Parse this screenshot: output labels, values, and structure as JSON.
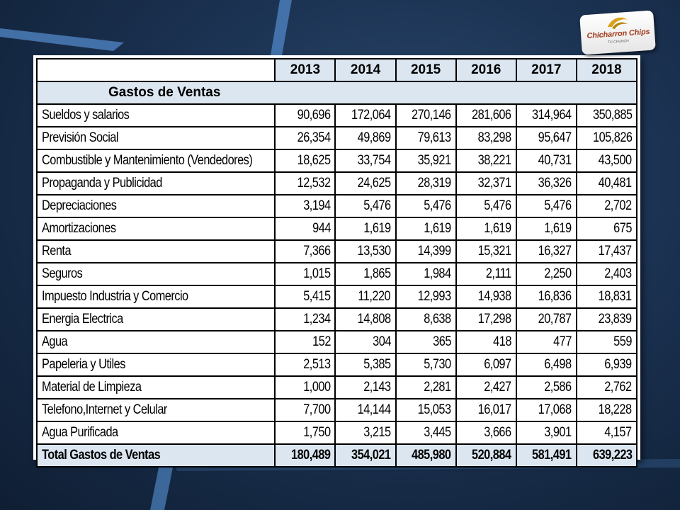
{
  "brand": {
    "name": "Chicharron Chips",
    "tagline": "TU CHUNCH"
  },
  "table": {
    "years": [
      "2013",
      "2014",
      "2015",
      "2016",
      "2017",
      "2018"
    ],
    "section_title": "Gastos de Ventas",
    "rows": [
      {
        "label": "Sueldos y salarios",
        "values": [
          "90,696",
          "172,064",
          "270,146",
          "281,606",
          "314,964",
          "350,885"
        ]
      },
      {
        "label": "Previsión Social",
        "values": [
          "26,354",
          "49,869",
          "79,613",
          "83,298",
          "95,647",
          "105,826"
        ]
      },
      {
        "label": "Combustible y Mantenimiento (Vendedores)",
        "values": [
          "18,625",
          "33,754",
          "35,921",
          "38,221",
          "40,731",
          "43,500"
        ]
      },
      {
        "label": "Propaganda y Publicidad",
        "values": [
          "12,532",
          "24,625",
          "28,319",
          "32,371",
          "36,326",
          "40,481"
        ]
      },
      {
        "label": "Depreciaciones",
        "values": [
          "3,194",
          "5,476",
          "5,476",
          "5,476",
          "5,476",
          "2,702"
        ]
      },
      {
        "label": "Amortizaciones",
        "values": [
          "944",
          "1,619",
          "1,619",
          "1,619",
          "1,619",
          "675"
        ]
      },
      {
        "label": "Renta",
        "values": [
          "7,366",
          "13,530",
          "14,399",
          "15,321",
          "16,327",
          "17,437"
        ]
      },
      {
        "label": "Seguros",
        "values": [
          "1,015",
          "1,865",
          "1,984",
          "2,111",
          "2,250",
          "2,403"
        ]
      },
      {
        "label": "Impuesto Industria y Comercio",
        "values": [
          "5,415",
          "11,220",
          "12,993",
          "14,938",
          "16,836",
          "18,831"
        ]
      },
      {
        "label": "Energia Electrica",
        "values": [
          "1,234",
          "14,808",
          "8,638",
          "17,298",
          "20,787",
          "23,839"
        ]
      },
      {
        "label": "Agua",
        "values": [
          "152",
          "304",
          "365",
          "418",
          "477",
          "559"
        ]
      },
      {
        "label": "Papeleria y Utiles",
        "values": [
          "2,513",
          "5,385",
          "5,730",
          "6,097",
          "6,498",
          "6,939"
        ]
      },
      {
        "label": "Material de Limpieza",
        "values": [
          "1,000",
          "2,143",
          "2,281",
          "2,427",
          "2,586",
          "2,762"
        ]
      },
      {
        "label": "Telefono,Internet y Celular",
        "values": [
          "7,700",
          "14,144",
          "15,053",
          "16,017",
          "17,068",
          "18,228"
        ]
      },
      {
        "label": "Agua Purificada",
        "values": [
          "1,750",
          "3,215",
          "3,445",
          "3,666",
          "3,901",
          "4,157"
        ]
      }
    ],
    "total": {
      "label": "Total Gastos de Ventas",
      "values": [
        "180,489",
        "354,021",
        "485,980",
        "520,884",
        "581,491",
        "639,223"
      ]
    }
  },
  "colors": {
    "header_fill": "#dce6f1",
    "background_dark": "#0f1e33",
    "background_mid": "#2c4a6d",
    "accent_stripe": "#4a7db8",
    "brand_red": "#a33a1d",
    "brand_gold": "#d9a21b"
  }
}
